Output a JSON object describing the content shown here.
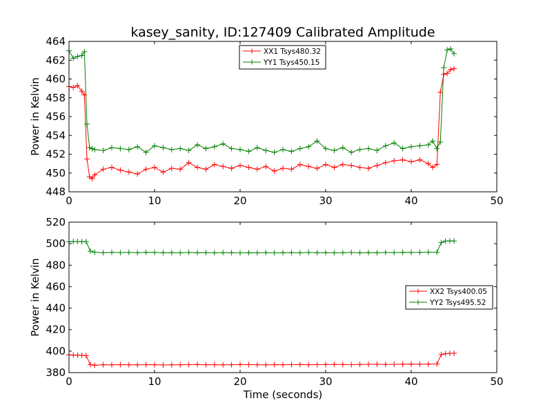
{
  "chart_data": [
    {
      "type": "line",
      "title": "kasey_sanity, ID:127409 Calibrated Amplitude",
      "xlabel": "",
      "ylabel": "Power in Kelvin",
      "xlim": [
        0,
        50
      ],
      "ylim": [
        448,
        464
      ],
      "x_ticks": [
        "0",
        "10",
        "20",
        "30",
        "40",
        "50"
      ],
      "y_ticks": [
        "448",
        "450",
        "452",
        "454",
        "456",
        "458",
        "460",
        "462",
        "464"
      ],
      "grid": false,
      "legend_position": "top-center",
      "series": [
        {
          "name": "XX1 Tsys480.32",
          "color": "#ff0000",
          "marker": "+",
          "x": [
            0,
            0.5,
            1,
            1.5,
            1.8,
            2.1,
            2.4,
            2.7,
            3,
            4,
            5,
            6,
            7,
            8,
            9,
            10,
            11,
            12,
            13,
            14,
            15,
            16,
            17,
            18,
            19,
            20,
            21,
            22,
            23,
            24,
            25,
            26,
            27,
            28,
            29,
            30,
            31,
            32,
            33,
            34,
            35,
            36,
            37,
            38,
            39,
            40,
            41,
            42,
            42.5,
            43,
            43.4,
            43.8,
            44.2,
            44.6,
            45
          ],
          "y": [
            459.2,
            459.1,
            459.3,
            458.7,
            458.3,
            451.5,
            449.6,
            449.4,
            449.8,
            450.4,
            450.6,
            450.3,
            450.1,
            449.9,
            450.4,
            450.6,
            450.1,
            450.5,
            450.4,
            451.1,
            450.6,
            450.4,
            450.9,
            450.7,
            450.5,
            450.8,
            450.6,
            450.4,
            450.7,
            450.2,
            450.5,
            450.4,
            450.9,
            450.7,
            450.5,
            450.9,
            450.6,
            450.9,
            450.8,
            450.6,
            450.5,
            450.8,
            451.1,
            451.3,
            451.4,
            451.2,
            451.4,
            451.0,
            450.6,
            450.9,
            458.6,
            460.5,
            460.6,
            461.0,
            461.1
          ]
        },
        {
          "name": "YY1 Tsys450.15",
          "color": "#008000",
          "marker": "+",
          "x": [
            0,
            0.5,
            1,
            1.5,
            1.8,
            2.1,
            2.4,
            2.7,
            3,
            4,
            5,
            6,
            7,
            8,
            9,
            10,
            11,
            12,
            13,
            14,
            15,
            16,
            17,
            18,
            19,
            20,
            21,
            22,
            23,
            24,
            25,
            26,
            27,
            28,
            29,
            30,
            31,
            32,
            33,
            34,
            35,
            36,
            37,
            38,
            39,
            40,
            41,
            42,
            42.5,
            43,
            43.4,
            43.8,
            44.2,
            44.6,
            45
          ],
          "y": [
            463.0,
            462.2,
            462.4,
            462.5,
            462.9,
            455.2,
            452.7,
            452.6,
            452.5,
            452.4,
            452.7,
            452.6,
            452.5,
            452.8,
            452.2,
            452.9,
            452.7,
            452.5,
            452.6,
            452.4,
            453.0,
            452.6,
            452.8,
            453.1,
            452.6,
            452.5,
            452.3,
            452.7,
            452.4,
            452.2,
            452.5,
            452.3,
            452.6,
            452.8,
            453.4,
            452.6,
            452.4,
            452.7,
            452.2,
            452.5,
            452.6,
            452.4,
            452.9,
            453.2,
            452.6,
            452.8,
            452.9,
            453.0,
            453.4,
            452.6,
            453.3,
            461.2,
            463.1,
            463.2,
            462.7
          ]
        }
      ]
    },
    {
      "type": "line",
      "title": "",
      "xlabel": "Time (seconds)",
      "ylabel": "Power in Kelvin",
      "xlim": [
        0,
        50
      ],
      "ylim": [
        380,
        520
      ],
      "x_ticks": [
        "0",
        "10",
        "20",
        "30",
        "40",
        "50"
      ],
      "y_ticks": [
        "380",
        "400",
        "420",
        "440",
        "460",
        "480",
        "500",
        "520"
      ],
      "grid": false,
      "legend_position": "center-right",
      "series": [
        {
          "name": "XX2 Tsys400.05",
          "color": "#ff0000",
          "marker": "+",
          "x": [
            0,
            0.5,
            1,
            1.5,
            2,
            2.5,
            3,
            4,
            5,
            6,
            7,
            8,
            9,
            10,
            11,
            12,
            13,
            14,
            15,
            16,
            17,
            18,
            19,
            20,
            21,
            22,
            23,
            24,
            25,
            26,
            27,
            28,
            29,
            30,
            31,
            32,
            33,
            34,
            35,
            36,
            37,
            38,
            39,
            40,
            41,
            42,
            43,
            43.5,
            44,
            44.5,
            45
          ],
          "y": [
            396.5,
            396.3,
            396.2,
            396.1,
            395.8,
            387.5,
            386.8,
            387.3,
            387.2,
            387.4,
            387.3,
            387.2,
            387.4,
            387.3,
            387.1,
            387.2,
            387.3,
            387.4,
            387.5,
            387.3,
            387.4,
            387.2,
            387.3,
            387.5,
            387.4,
            387.3,
            387.2,
            387.4,
            387.3,
            387.4,
            387.5,
            387.3,
            387.4,
            387.5,
            387.6,
            387.5,
            387.4,
            387.6,
            387.7,
            387.8,
            387.6,
            387.7,
            387.8,
            387.9,
            387.8,
            387.9,
            388.0,
            396.8,
            397.6,
            397.9,
            398.0
          ]
        },
        {
          "name": "YY2 Tsys495.52",
          "color": "#008000",
          "marker": "+",
          "x": [
            0,
            0.5,
            1,
            1.5,
            2,
            2.5,
            3,
            4,
            5,
            6,
            7,
            8,
            9,
            10,
            11,
            12,
            13,
            14,
            15,
            16,
            17,
            18,
            19,
            20,
            21,
            22,
            23,
            24,
            25,
            26,
            27,
            28,
            29,
            30,
            31,
            32,
            33,
            34,
            35,
            36,
            37,
            38,
            39,
            40,
            41,
            42,
            43,
            43.5,
            44,
            44.5,
            45
          ],
          "y": [
            501.8,
            501.9,
            502.0,
            501.8,
            501.9,
            493.0,
            492.1,
            491.6,
            491.9,
            491.7,
            491.8,
            491.6,
            491.9,
            491.8,
            491.6,
            491.7,
            491.5,
            491.8,
            491.6,
            491.7,
            491.5,
            491.7,
            491.6,
            491.4,
            491.6,
            491.5,
            491.7,
            491.4,
            491.6,
            491.7,
            491.5,
            491.8,
            491.6,
            491.7,
            491.5,
            491.6,
            491.8,
            491.5,
            491.7,
            491.6,
            491.8,
            491.7,
            491.9,
            491.8,
            491.9,
            492.1,
            492.0,
            501.0,
            502.4,
            502.6,
            502.5
          ]
        }
      ]
    }
  ]
}
